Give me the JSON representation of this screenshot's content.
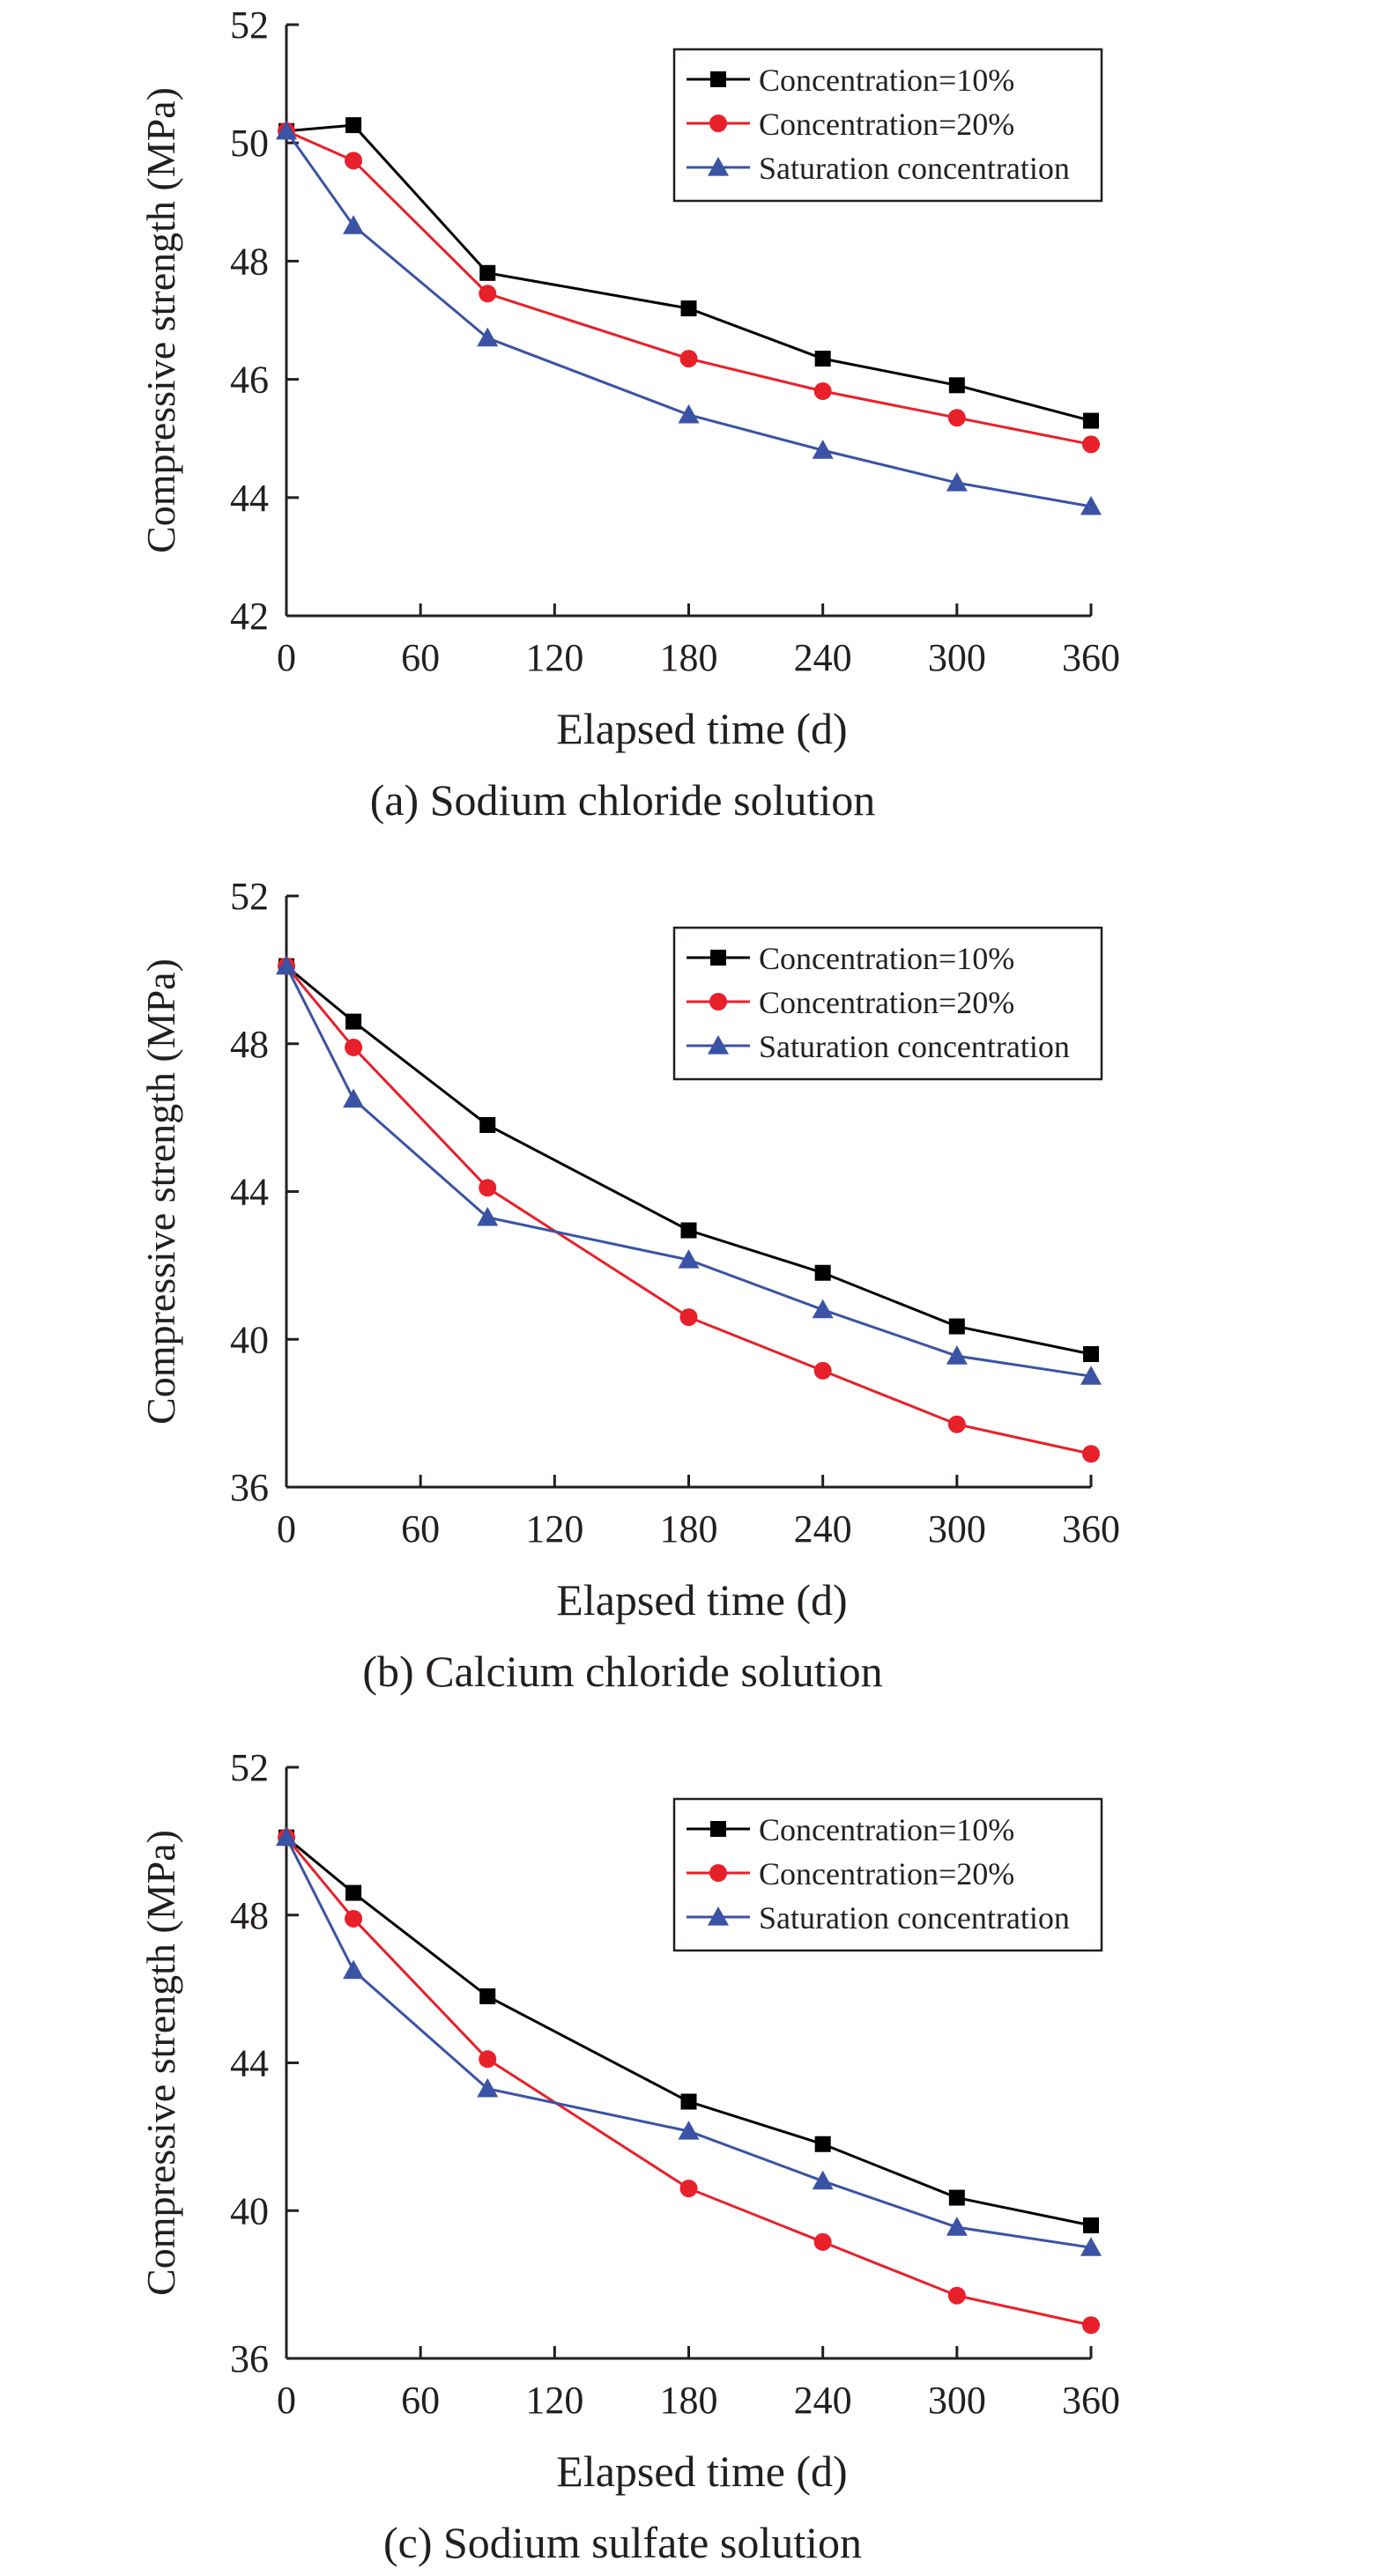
{
  "chart_data": [
    {
      "type": "line",
      "title": "(a) Sodium chloride solution",
      "xlabel": "Elapsed time (d)",
      "ylabel": "Compressive strength (MPa)",
      "xlim": [
        0,
        360
      ],
      "ylim": [
        42,
        52
      ],
      "xticks": [
        0,
        60,
        120,
        180,
        240,
        300,
        360
      ],
      "yticks": [
        42,
        44,
        46,
        48,
        50,
        52
      ],
      "legend_position": "top-right",
      "grid": false,
      "x": [
        0,
        30,
        90,
        180,
        240,
        300,
        360
      ],
      "series": [
        {
          "name": "Concentration=10%",
          "color": "#000000",
          "marker": "square",
          "values": [
            50.2,
            50.3,
            47.8,
            47.2,
            46.35,
            45.9,
            45.3
          ]
        },
        {
          "name": "Concentration=20%",
          "color": "#e8202a",
          "marker": "circle",
          "values": [
            50.2,
            49.7,
            47.45,
            46.35,
            45.8,
            45.35,
            44.9
          ]
        },
        {
          "name": "Saturation concentration",
          "color": "#3a53a4",
          "marker": "triangle",
          "values": [
            50.2,
            48.6,
            46.7,
            45.4,
            44.8,
            44.25,
            43.85
          ]
        }
      ]
    },
    {
      "type": "line",
      "title": "(b) Calcium chloride solution",
      "xlabel": "Elapsed time (d)",
      "ylabel": "Compressive strength (MPa)",
      "xlim": [
        0,
        360
      ],
      "ylim": [
        36,
        52
      ],
      "xticks": [
        0,
        60,
        120,
        180,
        240,
        300,
        360
      ],
      "yticks": [
        36,
        40,
        44,
        48,
        52
      ],
      "legend_position": "top-right",
      "grid": false,
      "x": [
        0,
        30,
        90,
        180,
        240,
        300,
        360
      ],
      "series": [
        {
          "name": "Concentration=10%",
          "color": "#000000",
          "marker": "square",
          "values": [
            50.1,
            48.6,
            45.8,
            42.95,
            41.8,
            40.35,
            39.6
          ]
        },
        {
          "name": "Concentration=20%",
          "color": "#e8202a",
          "marker": "circle",
          "values": [
            50.1,
            47.9,
            44.1,
            40.6,
            39.15,
            37.7,
            36.9
          ]
        },
        {
          "name": "Saturation concentration",
          "color": "#3a53a4",
          "marker": "triangle",
          "values": [
            50.1,
            46.5,
            43.3,
            42.15,
            40.8,
            39.55,
            39.0
          ]
        }
      ]
    },
    {
      "type": "line",
      "title": "(c) Sodium sulfate solution",
      "xlabel": "Elapsed time (d)",
      "ylabel": "Compressive strength (MPa)",
      "xlim": [
        0,
        360
      ],
      "ylim": [
        36,
        52
      ],
      "xticks": [
        0,
        60,
        120,
        180,
        240,
        300,
        360
      ],
      "yticks": [
        36,
        40,
        44,
        48,
        52
      ],
      "legend_position": "top-right",
      "grid": false,
      "x": [
        0,
        30,
        90,
        180,
        240,
        300,
        360
      ],
      "series": [
        {
          "name": "Concentration=10%",
          "color": "#000000",
          "marker": "square",
          "values": [
            50.1,
            48.6,
            45.8,
            42.95,
            41.8,
            40.35,
            39.6
          ]
        },
        {
          "name": "Concentration=20%",
          "color": "#e8202a",
          "marker": "circle",
          "values": [
            50.1,
            47.9,
            44.1,
            40.6,
            39.15,
            37.7,
            36.9
          ]
        },
        {
          "name": "Saturation concentration",
          "color": "#3a53a4",
          "marker": "triangle",
          "values": [
            50.1,
            46.5,
            43.3,
            42.15,
            40.8,
            39.55,
            39.0
          ]
        }
      ]
    }
  ]
}
